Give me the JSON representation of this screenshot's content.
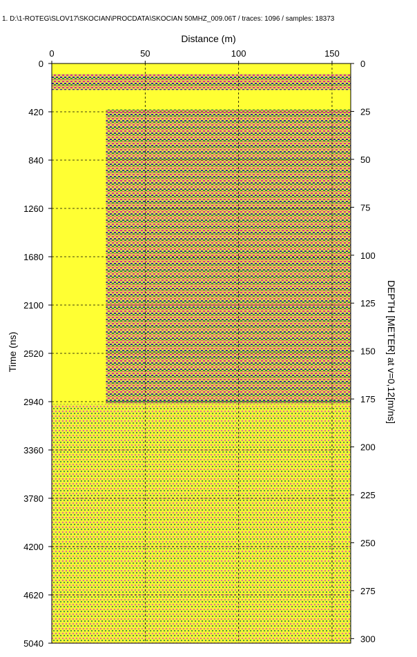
{
  "header": {
    "file_path": "1. D:\\1-ROTEG\\SLOV17\\SKOCIAN\\PROCDATA\\SKOCIAN 50MHZ_009.06T",
    "traces_label": "traces:",
    "traces": "1096",
    "samples_label": "samples:",
    "samples": "18373"
  },
  "chart_data": {
    "type": "heatmap",
    "title": "Distance (m)",
    "xlabel": "Distance (m)",
    "ylabel": "Time (ns)",
    "y2label": "DEPTH [METER] at v=0,12[m/ns]",
    "xlim": [
      0,
      160
    ],
    "ylim": [
      0,
      5040
    ],
    "y2lim": [
      0,
      302.4
    ],
    "x_ticks": [
      0,
      50,
      100,
      150
    ],
    "y_ticks": [
      0,
      420,
      840,
      1260,
      1680,
      2100,
      2520,
      2940,
      3360,
      3780,
      4200,
      4620,
      5040
    ],
    "y2_ticks": [
      0,
      25,
      50,
      75,
      100,
      125,
      150,
      175,
      200,
      225,
      250,
      275,
      300
    ],
    "grid": true,
    "colors": {
      "positive": "#dd2a8e",
      "strong": "#3a1f9a",
      "negative": "#2f8a3a",
      "background": "#ffff33"
    }
  }
}
